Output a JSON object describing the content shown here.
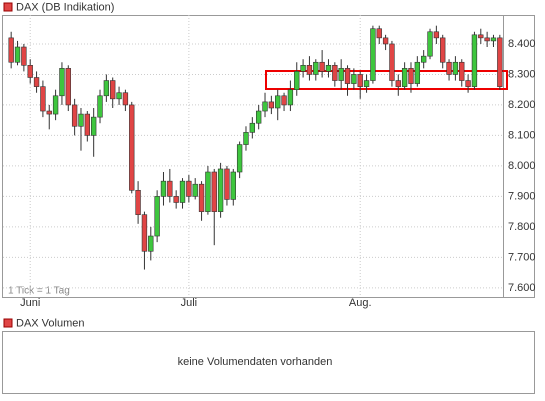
{
  "chart_data": {
    "type": "candlestick",
    "name": "DAX (DB Indikation)",
    "note": "1 Tick = 1 Tag",
    "up_color": "#3ec63e",
    "down_color": "#e04545",
    "categories": [
      null,
      null,
      null,
      "Juni",
      null,
      null,
      null,
      null,
      null,
      null,
      null,
      null,
      null,
      null,
      null,
      null,
      null,
      null,
      null,
      null,
      null,
      null,
      null,
      null,
      null,
      null,
      null,
      null,
      "Juli",
      null,
      null,
      null,
      null,
      null,
      null,
      null,
      null,
      null,
      null,
      null,
      null,
      null,
      null,
      null,
      null,
      null,
      null,
      null,
      null,
      null,
      null,
      null,
      null,
      null,
      null,
      "Aug.",
      null,
      null,
      null,
      null,
      null,
      null,
      null,
      null,
      null,
      null,
      null,
      null,
      null,
      null,
      null,
      null,
      null,
      null,
      null,
      null,
      null,
      null
    ],
    "open": [
      8420,
      8340,
      8390,
      8330,
      8290,
      8260,
      8180,
      8170,
      8230,
      8320,
      8200,
      8130,
      8170,
      8100,
      8160,
      8230,
      8280,
      8220,
      8240,
      8200,
      7920,
      7840,
      7720,
      7770,
      7900,
      7950,
      7900,
      7880,
      7950,
      7900,
      7940,
      7850,
      7980,
      7850,
      7990,
      7890,
      7980,
      8070,
      8110,
      8140,
      8180,
      8210,
      8190,
      8230,
      8200,
      8250,
      8310,
      8330,
      8300,
      8340,
      8310,
      8330,
      8280,
      8320,
      8270,
      8300,
      8260,
      8280,
      8450,
      8420,
      8400,
      8280,
      8260,
      8320,
      8270,
      8340,
      8360,
      8440,
      8420,
      8340,
      8300,
      8340,
      8280,
      8260,
      8430,
      8420,
      8410,
      8420
    ],
    "high": [
      8440,
      8410,
      8400,
      8350,
      8310,
      8280,
      8200,
      8250,
      8340,
      8330,
      8220,
      8190,
      8180,
      8190,
      8250,
      8300,
      8290,
      8260,
      8250,
      8210,
      7950,
      7850,
      7800,
      7920,
      7980,
      7990,
      7920,
      7960,
      7970,
      7960,
      7950,
      8000,
      7990,
      8010,
      8000,
      7990,
      8080,
      8130,
      8160,
      8200,
      8240,
      8230,
      8250,
      8240,
      8280,
      8340,
      8350,
      8360,
      8350,
      8380,
      8350,
      8340,
      8350,
      8330,
      8320,
      8310,
      8300,
      8460,
      8460,
      8430,
      8410,
      8300,
      8340,
      8340,
      8360,
      8380,
      8450,
      8460,
      8430,
      8350,
      8360,
      8350,
      8300,
      8440,
      8450,
      8440,
      8430,
      8430
    ],
    "low": [
      8320,
      8330,
      8310,
      8270,
      8240,
      8160,
      8120,
      8150,
      8200,
      8180,
      8100,
      8050,
      8080,
      8030,
      8140,
      8210,
      8190,
      8200,
      8180,
      7910,
      7810,
      7660,
      7690,
      7750,
      7870,
      7880,
      7860,
      7860,
      7880,
      7890,
      7820,
      7840,
      7740,
      7830,
      7870,
      7870,
      7960,
      8050,
      8090,
      8120,
      8160,
      8170,
      8150,
      8180,
      8180,
      8230,
      8290,
      8280,
      8280,
      8290,
      8290,
      8260,
      8250,
      8230,
      8250,
      8220,
      8240,
      8270,
      8400,
      8380,
      8260,
      8230,
      8250,
      8240,
      8260,
      8320,
      8350,
      8400,
      8320,
      8280,
      8280,
      8260,
      8240,
      8250,
      8400,
      8390,
      8390,
      8250
    ],
    "close": [
      8340,
      8390,
      8330,
      8290,
      8260,
      8180,
      8170,
      8230,
      8320,
      8200,
      8130,
      8170,
      8100,
      8160,
      8230,
      8280,
      8220,
      8240,
      8200,
      7920,
      7840,
      7720,
      7770,
      7900,
      7950,
      7900,
      7880,
      7950,
      7900,
      7940,
      7850,
      7980,
      7850,
      7990,
      7890,
      7980,
      8070,
      8110,
      8140,
      8180,
      8210,
      8190,
      8230,
      8200,
      8250,
      8310,
      8330,
      8300,
      8340,
      8310,
      8330,
      8280,
      8320,
      8270,
      8300,
      8260,
      8280,
      8450,
      8420,
      8400,
      8280,
      8260,
      8320,
      8270,
      8340,
      8360,
      8440,
      8420,
      8340,
      8300,
      8340,
      8280,
      8260,
      8430,
      8420,
      8410,
      8420,
      8260
    ],
    "ylim": [
      7570,
      8495
    ],
    "yticks": [
      {
        "value": 7600,
        "label": "7.600"
      },
      {
        "value": 7700,
        "label": "7.700"
      },
      {
        "value": 7800,
        "label": "7.800"
      },
      {
        "value": 7900,
        "label": "7.900"
      },
      {
        "value": 8000,
        "label": "8.000"
      },
      {
        "value": 8100,
        "label": "8.100"
      },
      {
        "value": 8200,
        "label": "8.200"
      },
      {
        "value": 8300,
        "label": "8.300"
      },
      {
        "value": 8400,
        "label": "8.400"
      }
    ],
    "grid": true
  },
  "volume_panel": {
    "title": "DAX Volumen",
    "message": "keine Volumendaten vorhanden"
  }
}
